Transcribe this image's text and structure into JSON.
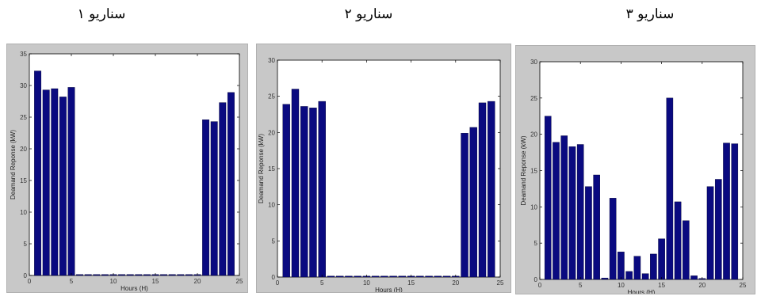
{
  "figure": {
    "titles": [
      "سناریو ۱",
      "سناریو ۲",
      "سناریو ۳"
    ]
  },
  "colors": {
    "bar": "#0a0a80",
    "bar_stroke": "#000033",
    "panel_bg": "#c8c8c8",
    "plot_bg": "#ffffff"
  },
  "chart_data": [
    {
      "type": "bar",
      "title": "سناریو ۱",
      "xlabel": "Hours (H)",
      "ylabel": "Deamand Reponse (kW)",
      "xlim": [
        0,
        25
      ],
      "ylim": [
        0,
        35
      ],
      "xticks": [
        0,
        5,
        10,
        15,
        20,
        25
      ],
      "yticks": [
        0,
        5,
        10,
        15,
        20,
        25,
        30,
        35
      ],
      "x": [
        1,
        2,
        3,
        4,
        5,
        6,
        7,
        8,
        9,
        10,
        11,
        12,
        13,
        14,
        15,
        16,
        17,
        18,
        19,
        20,
        21,
        22,
        23,
        24
      ],
      "values": [
        32.3,
        29.3,
        29.5,
        28.2,
        29.7,
        0,
        0,
        0,
        0,
        0,
        0,
        0,
        0,
        0,
        0,
        0,
        0,
        0,
        0,
        0,
        24.6,
        24.3,
        27.3,
        28.9
      ]
    },
    {
      "type": "bar",
      "title": "سناریو ۲",
      "xlabel": "Hours (H)",
      "ylabel": "Deamand Reponse (kW)",
      "xlim": [
        0,
        25
      ],
      "ylim": [
        0,
        30
      ],
      "xticks": [
        0,
        5,
        10,
        15,
        20,
        25
      ],
      "yticks": [
        0,
        5,
        10,
        15,
        20,
        25,
        30
      ],
      "x": [
        1,
        2,
        3,
        4,
        5,
        6,
        7,
        8,
        9,
        10,
        11,
        12,
        13,
        14,
        15,
        16,
        17,
        18,
        19,
        20,
        21,
        22,
        23,
        24
      ],
      "values": [
        23.9,
        26.0,
        23.6,
        23.4,
        24.3,
        0,
        0,
        0,
        0,
        0,
        0,
        0,
        0,
        0,
        0,
        0,
        0,
        0,
        0,
        0,
        19.9,
        20.7,
        24.1,
        24.3
      ]
    },
    {
      "type": "bar",
      "title": "سناریو ۳",
      "xlabel": "Hours (H)",
      "ylabel": "Deamand Reponse (kW)",
      "xlim": [
        0,
        25
      ],
      "ylim": [
        0,
        30
      ],
      "xticks": [
        0,
        5,
        10,
        15,
        20,
        25
      ],
      "yticks": [
        0,
        5,
        10,
        15,
        20,
        25,
        30
      ],
      "x": [
        1,
        2,
        3,
        4,
        5,
        6,
        7,
        8,
        9,
        10,
        11,
        12,
        13,
        14,
        15,
        16,
        17,
        18,
        19,
        20,
        21,
        22,
        23,
        24
      ],
      "values": [
        22.5,
        18.9,
        19.8,
        18.3,
        18.6,
        12.8,
        14.4,
        0.2,
        11.2,
        3.8,
        1.1,
        3.2,
        0.8,
        3.5,
        5.6,
        25.0,
        10.7,
        8.1,
        0.5,
        0.1,
        12.8,
        13.8,
        18.8,
        18.7
      ]
    }
  ]
}
